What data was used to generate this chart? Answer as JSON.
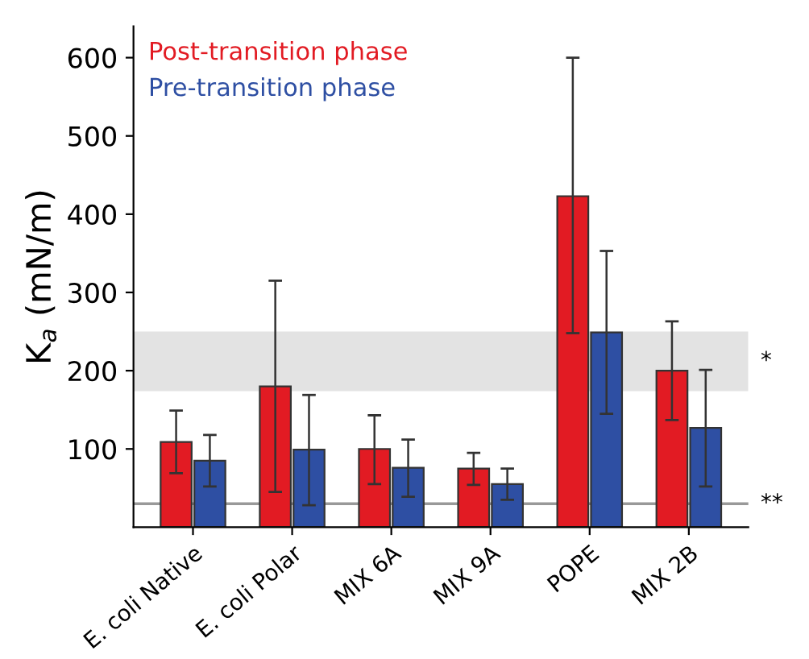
{
  "chart_data": {
    "type": "bar",
    "ylabel": "K$_{a}$ (mN/m)",
    "categories": [
      "E. coli Native",
      "E. coli Polar",
      "MIX 6A",
      "MIX 9A",
      "POPE",
      "MIX 2B"
    ],
    "series": [
      {
        "name": "Post-transition phase",
        "color": "#e21b23",
        "values": [
          109,
          180,
          100,
          75,
          423,
          200
        ],
        "errors": [
          [
            69,
            149
          ],
          [
            45,
            315
          ],
          [
            55,
            143
          ],
          [
            54,
            95
          ],
          [
            248,
            600
          ],
          [
            137,
            263
          ]
        ]
      },
      {
        "name": "Pre-transition phase",
        "color": "#2e4fa3",
        "values": [
          85,
          99,
          76,
          55,
          249,
          127
        ],
        "errors": [
          [
            52,
            118
          ],
          [
            28,
            169
          ],
          [
            39,
            112
          ],
          [
            35,
            75
          ],
          [
            145,
            353
          ],
          [
            52,
            201
          ]
        ]
      }
    ],
    "ylim": [
      0,
      640
    ],
    "yticks": [
      100,
      200,
      300,
      400,
      500,
      600
    ],
    "bands": [
      {
        "axis": "y",
        "from": 174,
        "to": 250,
        "label": "*",
        "color": "#e3e3e3"
      }
    ],
    "ref_lines": [
      {
        "axis": "y",
        "value": 30,
        "label": "**",
        "color": "#999999"
      }
    ],
    "legend": "top left",
    "grid": false
  }
}
